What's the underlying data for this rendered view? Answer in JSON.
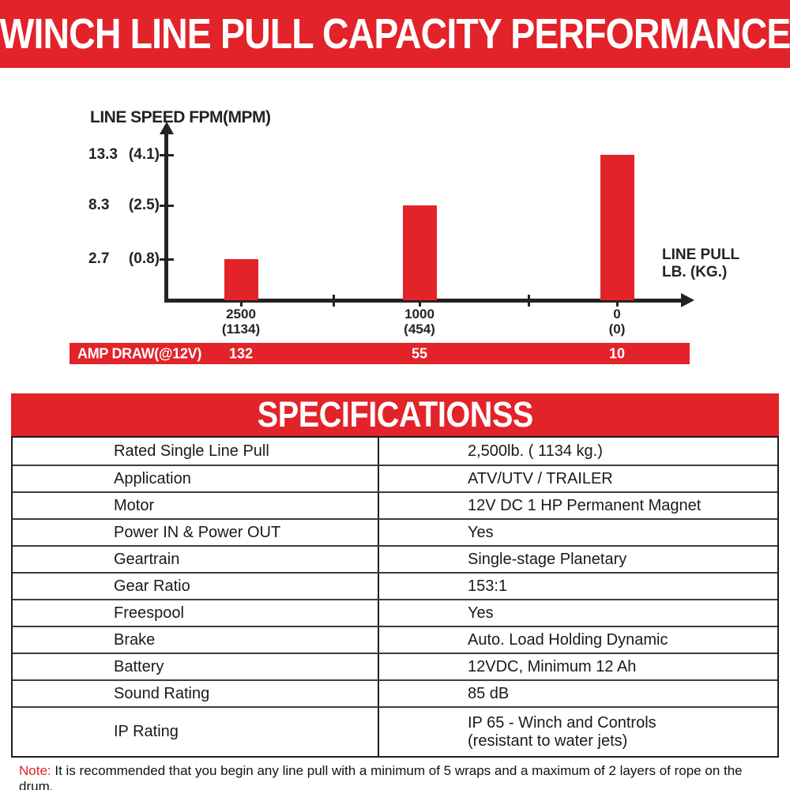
{
  "colors": {
    "red": "#e22329",
    "axis": "#262220"
  },
  "header": {
    "title": "WINCH LINE PULL CAPACITY PERFORMANCE"
  },
  "chart_data": {
    "type": "bar",
    "title": "Winch line pull capacity performance",
    "y_axis_label": "LINE SPEED FPM(MPM)",
    "x_axis_label_line1": "LINE PULL",
    "x_axis_label_line2": "LB. (KG.)",
    "categories_lb": [
      2500,
      1000,
      0
    ],
    "categories_kg": [
      1134,
      454,
      0
    ],
    "series": [
      {
        "name": "Line speed FPM",
        "values_fpm": [
          2.7,
          8.3,
          13.3
        ],
        "values_mpm": [
          0.8,
          2.5,
          4.1
        ]
      }
    ],
    "y_ticks": [
      {
        "fpm": "13.3",
        "mpm": "(4.1)"
      },
      {
        "fpm": "8.3",
        "mpm": "(2.5)"
      },
      {
        "fpm": "2.7",
        "mpm": "(0.8)"
      }
    ],
    "x_ticks": [
      {
        "lb": "2500",
        "kg": "(1134)"
      },
      {
        "lb": "1000",
        "kg": "(454)"
      },
      {
        "lb": "0",
        "kg": "(0)"
      }
    ],
    "amp_draw": {
      "label": "AMP DRAW(@12V)",
      "values": [
        "132",
        "55",
        "10"
      ]
    },
    "ylim": [
      0,
      15
    ],
    "grid": false,
    "legend": "none"
  },
  "specs": {
    "title": "SPECIFICATIONSS",
    "rows": [
      {
        "label": "Rated Single Line Pull",
        "value": "2,500lb. ( 1134 kg.)"
      },
      {
        "label": "Application",
        "value": "ATV/UTV / TRAILER"
      },
      {
        "label": "Motor",
        "value": "12V DC 1 HP Permanent Magnet"
      },
      {
        "label": "Power IN & Power OUT",
        "value": "Yes"
      },
      {
        "label": "Geartrain",
        "value": "Single-stage Planetary"
      },
      {
        "label": "Gear Ratio",
        "value": "153:1"
      },
      {
        "label": "Freespool",
        "value": "Yes"
      },
      {
        "label": "Brake",
        "value": "Auto. Load Holding Dynamic"
      },
      {
        "label": "Battery",
        "value": "12VDC, Minimum 12 Ah"
      },
      {
        "label": "Sound Rating",
        "value": "85 dB"
      },
      {
        "label": "IP Rating",
        "value": "IP 65 - Winch and Controls\n(resistant to water jets)"
      }
    ]
  },
  "note": {
    "label": "Note:",
    "text": " It is recommended that you begin any line pull with a minimum of 5 wraps and a maximum of 2 layers of rope on the drum."
  }
}
